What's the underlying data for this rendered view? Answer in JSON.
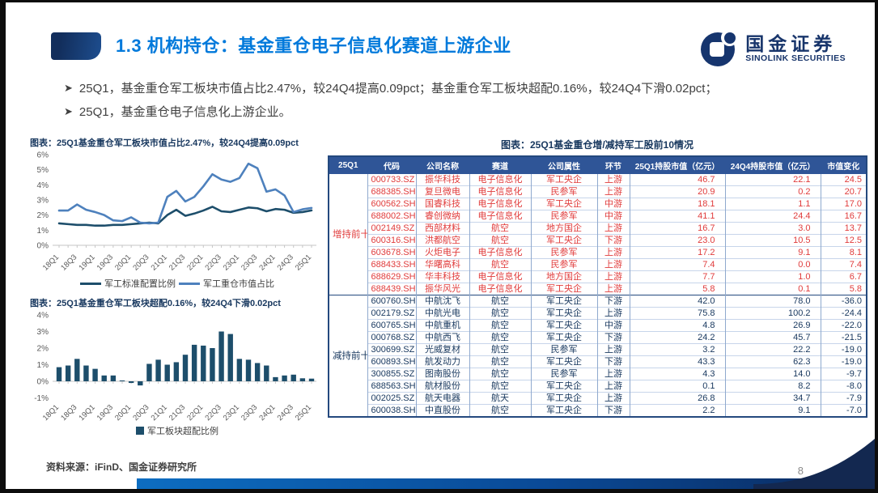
{
  "header": {
    "section_title": "1.3 机构持仓：基金重仓电子信息化赛道上游企业",
    "logo_cn": "国金证券",
    "logo_en": "SINOLINK SECURITIES"
  },
  "bullets": [
    "25Q1，基金重仓军工板块市值占比2.47%，较24Q4提高0.09pct；基金重仓军工板块超配0.16%，较24Q4下滑0.02pct；",
    "25Q1，基金重仓电子信息化上游企业。"
  ],
  "chart_data": [
    {
      "type": "line",
      "title": "图表：25Q1基金重仓军工板块市值占比2.47%，较24Q4提高0.09pct",
      "x": [
        "18Q1",
        "18Q2",
        "18Q3",
        "18Q4",
        "19Q1",
        "19Q2",
        "19Q3",
        "19Q4",
        "20Q1",
        "20Q2",
        "20Q3",
        "20Q4",
        "21Q1",
        "21Q2",
        "21Q3",
        "21Q4",
        "22Q1",
        "22Q2",
        "22Q3",
        "22Q4",
        "23Q1",
        "23Q2",
        "23Q3",
        "23Q4",
        "24Q1",
        "24Q2",
        "24Q3",
        "24Q4",
        "25Q1"
      ],
      "x_tick_labels": [
        "18Q1",
        "18Q3",
        "19Q1",
        "19Q3",
        "20Q1",
        "20Q3",
        "21Q1",
        "21Q3",
        "22Q1",
        "22Q3",
        "23Q1",
        "23Q3",
        "24Q1",
        "24Q3",
        "25Q1"
      ],
      "ylim": [
        0,
        6
      ],
      "ytick_suffix": "%",
      "grid": false,
      "legend_position": "bottom",
      "series": [
        {
          "name": "军工标准配置比例",
          "color": "#1d4e6b",
          "values": [
            1.45,
            1.4,
            1.35,
            1.35,
            1.3,
            1.3,
            1.35,
            1.35,
            1.4,
            1.45,
            1.5,
            1.45,
            2.0,
            2.35,
            1.95,
            2.1,
            2.3,
            2.55,
            2.25,
            2.2,
            2.35,
            2.5,
            2.45,
            2.25,
            2.4,
            2.35,
            2.15,
            2.2,
            2.31
          ]
        },
        {
          "name": "军工重仓市值占比",
          "color": "#4e81bd",
          "values": [
            2.3,
            2.3,
            2.7,
            2.35,
            2.2,
            2.0,
            1.65,
            1.6,
            1.85,
            1.5,
            1.45,
            1.5,
            3.2,
            3.6,
            2.9,
            3.2,
            3.9,
            4.7,
            4.35,
            4.2,
            4.45,
            5.4,
            5.1,
            3.55,
            3.7,
            3.3,
            2.2,
            2.38,
            2.47
          ]
        }
      ]
    },
    {
      "type": "bar",
      "title": "图表：25Q1基金重仓军工板块超配0.16%，较24Q4下滑0.02pct",
      "categories": [
        "18Q1",
        "18Q2",
        "18Q3",
        "18Q4",
        "19Q1",
        "19Q2",
        "19Q3",
        "19Q4",
        "20Q1",
        "20Q2",
        "20Q3",
        "20Q4",
        "21Q1",
        "21Q2",
        "21Q3",
        "21Q4",
        "22Q1",
        "22Q2",
        "22Q3",
        "22Q4",
        "23Q1",
        "23Q2",
        "23Q3",
        "23Q4",
        "24Q1",
        "24Q2",
        "24Q3",
        "24Q4",
        "25Q1"
      ],
      "x_tick_labels": [
        "18Q1",
        "18Q3",
        "19Q1",
        "19Q3",
        "20Q1",
        "20Q3",
        "21Q1",
        "21Q3",
        "22Q1",
        "22Q3",
        "23Q1",
        "23Q3",
        "24Q1",
        "24Q3",
        "25Q1"
      ],
      "ylim": [
        -1,
        4
      ],
      "ytick_suffix": "%",
      "grid": false,
      "legend_position": "bottom",
      "series": [
        {
          "name": "军工板块超配比例",
          "color": "#1d4e6b",
          "values": [
            0.85,
            0.95,
            1.35,
            0.95,
            0.75,
            0.35,
            0.35,
            0.05,
            -0.1,
            -0.25,
            1.05,
            1.3,
            1.0,
            1.15,
            1.6,
            2.2,
            2.15,
            2.0,
            3.0,
            2.85,
            1.35,
            1.3,
            1.1,
            0.95,
            0.25,
            0.35,
            0.4,
            0.18,
            0.16
          ]
        }
      ]
    }
  ],
  "table": {
    "title": "图表：25Q1基金重仓增/减持军工股前10情况",
    "headers": [
      "25Q1",
      "代码",
      "公司名称",
      "赛道",
      "公司属性",
      "环节",
      "25Q1持股市值（亿元）",
      "24Q4持股市值（亿元）",
      "市值变化"
    ],
    "groups": [
      {
        "label": "增持前十",
        "rows": [
          [
            "000733.SZ",
            "振华科技",
            "电子信息化",
            "军工央企",
            "上游",
            "46.7",
            "22.1",
            "24.5"
          ],
          [
            "688385.SH",
            "复旦微电",
            "电子信息化",
            "民参军",
            "上游",
            "20.9",
            "0.2",
            "20.7"
          ],
          [
            "600562.SH",
            "国睿科技",
            "电子信息化",
            "军工央企",
            "中游",
            "18.1",
            "1.1",
            "17.0"
          ],
          [
            "688002.SH",
            "睿创微纳",
            "电子信息化",
            "民参军",
            "中游",
            "41.1",
            "24.4",
            "16.7"
          ],
          [
            "002149.SZ",
            "西部材料",
            "航空",
            "地方国企",
            "上游",
            "16.7",
            "3.0",
            "13.7"
          ],
          [
            "600316.SH",
            "洪都航空",
            "航空",
            "军工央企",
            "下游",
            "23.0",
            "10.5",
            "12.5"
          ],
          [
            "603678.SH",
            "火炬电子",
            "电子信息化",
            "民参军",
            "上游",
            "17.2",
            "9.1",
            "8.1"
          ],
          [
            "688433.SH",
            "华曙高科",
            "航空",
            "民参军",
            "上游",
            "7.4",
            "0.0",
            "7.4"
          ],
          [
            "688629.SH",
            "华丰科技",
            "电子信息化",
            "地方国企",
            "上游",
            "7.7",
            "1.0",
            "6.7"
          ],
          [
            "688439.SH",
            "振华风光",
            "电子信息化",
            "军工央企",
            "上游",
            "5.8",
            "0.1",
            "5.8"
          ]
        ]
      },
      {
        "label": "减持前十",
        "rows": [
          [
            "600760.SH",
            "中航沈飞",
            "航空",
            "军工央企",
            "下游",
            "42.0",
            "78.0",
            "-36.0"
          ],
          [
            "002179.SZ",
            "中航光电",
            "航空",
            "军工央企",
            "上游",
            "75.8",
            "100.2",
            "-24.4"
          ],
          [
            "600765.SH",
            "中航重机",
            "航空",
            "军工央企",
            "中游",
            "4.8",
            "26.9",
            "-22.0"
          ],
          [
            "000768.SZ",
            "中航西飞",
            "航空",
            "军工央企",
            "下游",
            "24.2",
            "45.7",
            "-21.5"
          ],
          [
            "300699.SZ",
            "光威复材",
            "航空",
            "民参军",
            "上游",
            "3.2",
            "22.2",
            "-19.0"
          ],
          [
            "600893.SH",
            "航发动力",
            "航空",
            "军工央企",
            "下游",
            "43.3",
            "62.3",
            "-19.0"
          ],
          [
            "300855.SZ",
            "图南股份",
            "航空",
            "民参军",
            "上游",
            "4.3",
            "14.0",
            "-9.7"
          ],
          [
            "688563.SH",
            "航材股份",
            "航空",
            "军工央企",
            "上游",
            "0.1",
            "8.2",
            "-8.0"
          ],
          [
            "002025.SZ",
            "航天电器",
            "航天",
            "军工央企",
            "上游",
            "26.8",
            "34.7",
            "-7.9"
          ],
          [
            "600038.SH",
            "中直股份",
            "航空",
            "军工央企",
            "下游",
            "2.2",
            "9.1",
            "-7.0"
          ]
        ]
      }
    ]
  },
  "footer": {
    "source": "资料来源：iFinD、国金证券研究所",
    "page": "8"
  },
  "colors": {
    "title_blue": "#0079db",
    "navy_text": "#17375e",
    "table_header_bg": "#2f5597",
    "increase_red": "#e03b3b",
    "decrease_navy": "#17375e",
    "line_dark": "#1d4e6b",
    "line_light": "#4e81bd",
    "bar_fill": "#1d4e6b"
  }
}
